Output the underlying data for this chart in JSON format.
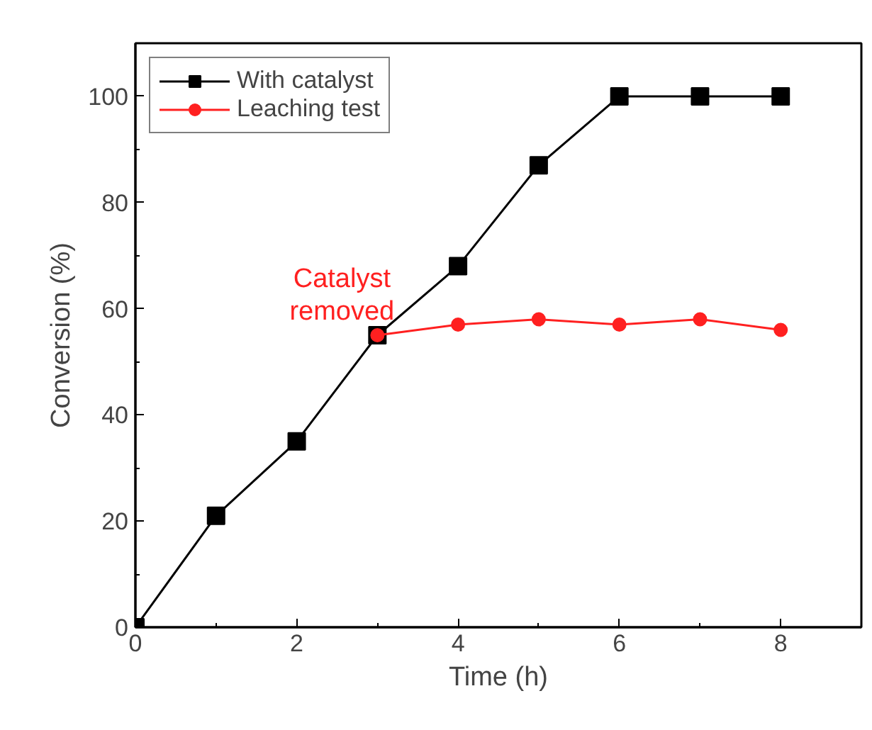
{
  "chart_data": {
    "type": "line",
    "xlabel": "Time (h)",
    "ylabel": "Conversion (%)",
    "series": [
      {
        "name": "With catalyst",
        "color": "#000000",
        "marker": "square",
        "x": [
          0,
          1,
          2,
          3,
          4,
          5,
          6,
          7,
          8
        ],
        "values": [
          0,
          21,
          35,
          55,
          68,
          87,
          100,
          100,
          100
        ]
      },
      {
        "name": "Leaching test",
        "color": "#ff2020",
        "marker": "circle",
        "x": [
          3,
          4,
          5,
          6,
          7,
          8
        ],
        "values": [
          55,
          57,
          58,
          57,
          58,
          56
        ]
      }
    ],
    "annotations": [
      {
        "text": "Catalyst\nremoved",
        "x": 3,
        "y": 55
      }
    ],
    "xlim": [
      0,
      9
    ],
    "ylim": [
      0,
      110
    ],
    "xticks": [
      0,
      2,
      4,
      6,
      8
    ],
    "yticks": [
      0,
      20,
      40,
      60,
      80,
      100
    ],
    "legend": "top left",
    "grid": false,
    "line_style": "solid"
  }
}
